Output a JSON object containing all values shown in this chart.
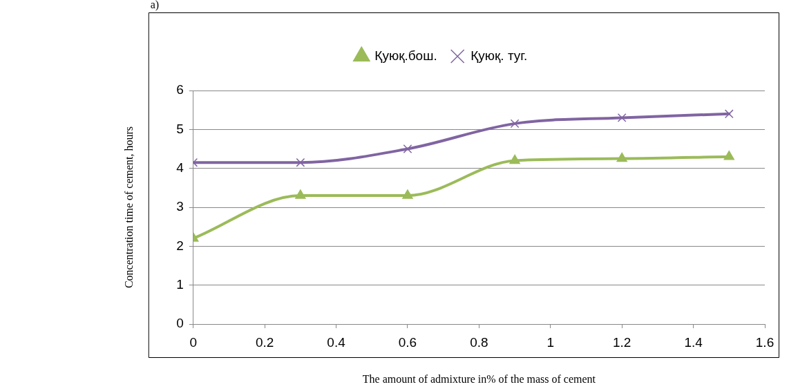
{
  "chart_data": {
    "type": "line",
    "title": "a)",
    "xlabel": "The amount of admixture in% of the mass of cement",
    "ylabel": "Concentration time of cement, hours",
    "x": [
      0,
      0.3,
      0.6,
      0.9,
      1.2,
      1.5
    ],
    "series": [
      {
        "name": "Қуюқ.бош.",
        "color": "#9bbb59",
        "values": [
          2.2,
          3.3,
          3.3,
          4.2,
          4.25,
          4.3
        ],
        "marker": "triangle"
      },
      {
        "name": "Қуюқ. туг.",
        "color": "#8064a2",
        "values": [
          4.15,
          4.15,
          4.5,
          5.15,
          5.3,
          5.4
        ],
        "marker": "cross"
      }
    ],
    "xlim": [
      0,
      1.6
    ],
    "xticks": [
      0,
      0.2,
      0.4,
      0.6,
      0.8,
      1,
      1.2,
      1.4,
      1.6
    ],
    "ylim": [
      0,
      6
    ],
    "yticks": [
      0,
      1,
      2,
      3,
      4,
      5,
      6
    ],
    "grid": "y",
    "legend": "top",
    "line_style": "solid"
  }
}
